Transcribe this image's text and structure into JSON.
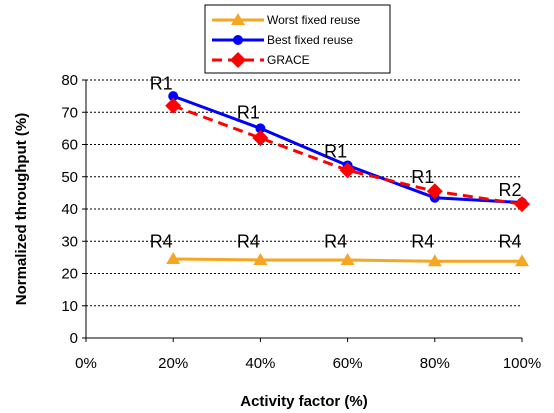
{
  "chart_data": {
    "type": "line",
    "x": [
      "20%",
      "40%",
      "60%",
      "80%",
      "100%"
    ],
    "xlabel": "Activity factor (%)",
    "ylabel": "Normalized throughput (%)",
    "xticks": [
      "0%",
      "20%",
      "40%",
      "60%",
      "80%",
      "100%"
    ],
    "yticks": [
      "0",
      "10",
      "20",
      "30",
      "40",
      "50",
      "60",
      "70",
      "80"
    ],
    "ylim": [
      0,
      80
    ],
    "grid": "horizontal-dashed",
    "legend_position": "top",
    "series": [
      {
        "name": "Worst fixed reuse",
        "color": "#F5A623",
        "marker": "triangle",
        "line": "solid",
        "values": [
          24.5,
          24.2,
          24.2,
          23.8,
          23.8
        ]
      },
      {
        "name": "Best fixed reuse",
        "color": "#0000FF",
        "marker": "circle",
        "line": "solid",
        "values": [
          75,
          65,
          53.5,
          43.5,
          42
        ]
      },
      {
        "name": "GRACE",
        "color": "#FF0000",
        "marker": "diamond",
        "line": "dashed",
        "values": [
          72,
          62,
          52,
          45.5,
          41.5
        ]
      }
    ],
    "annotations": [
      {
        "text": "R1",
        "x": "20%",
        "y": 77
      },
      {
        "text": "R1",
        "x": "40%",
        "y": 68
      },
      {
        "text": "R1",
        "x": "60%",
        "y": 56
      },
      {
        "text": "R1",
        "x": "80%",
        "y": 48
      },
      {
        "text": "R2",
        "x": "100%",
        "y": 44
      },
      {
        "text": "R4",
        "x": "20%",
        "y": 28
      },
      {
        "text": "R4",
        "x": "40%",
        "y": 28
      },
      {
        "text": "R4",
        "x": "60%",
        "y": 28
      },
      {
        "text": "R4",
        "x": "80%",
        "y": 28
      },
      {
        "text": "R4",
        "x": "100%",
        "y": 28
      }
    ]
  }
}
